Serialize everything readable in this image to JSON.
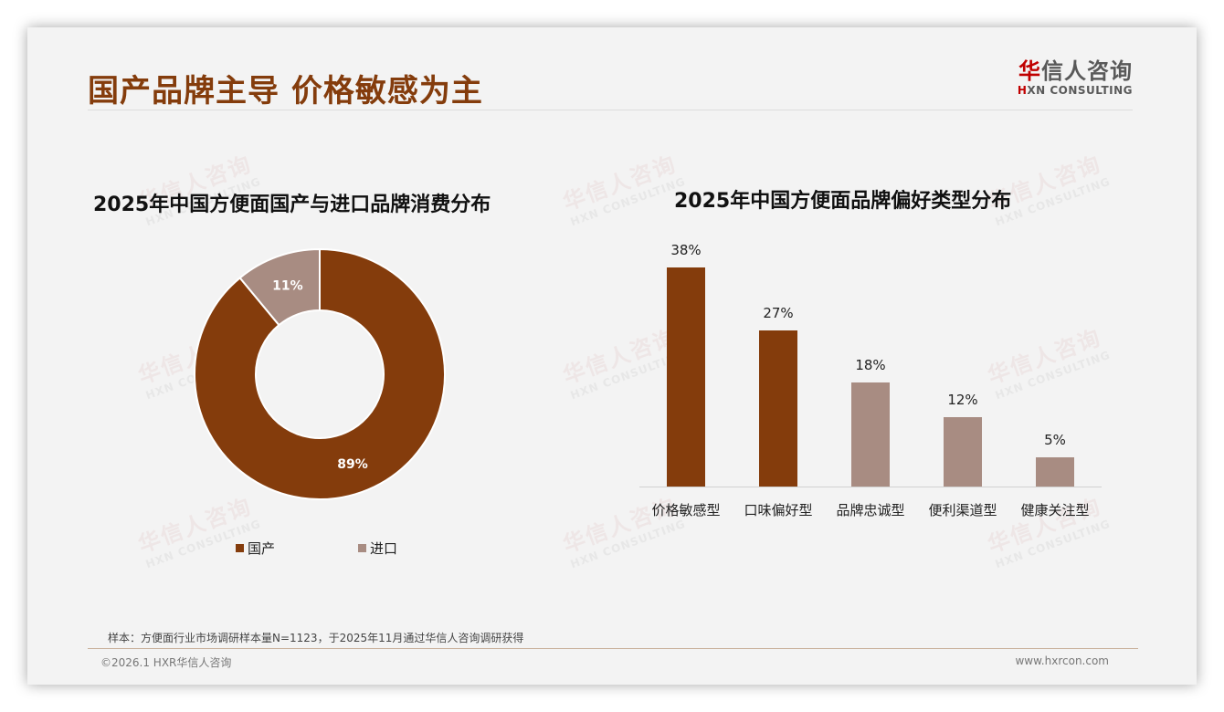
{
  "page": {
    "title": "国产品牌主导 价格敏感为主",
    "logo": {
      "cn_first": "华",
      "cn_rest": "信人咨询",
      "en_first": "H",
      "en_rest": "XN CONSULTING"
    },
    "note": "样本：方便面行业市场调研样本量N=1123，于2025年11月通过华信人咨询调研获得",
    "copyright": "©2026.1 HXR华信人咨询",
    "website": "www.hxrcon.com",
    "watermark": {
      "cn": "华信人咨询",
      "en": "HXN CONSULTING"
    }
  },
  "colors": {
    "primary": "#843c0c",
    "secondary": "#a88c82",
    "title": "#843c0c"
  },
  "chart_data": [
    {
      "type": "pie",
      "variant": "donut",
      "title": "2025年中国方便面国产与进口品牌消费分布",
      "categories": [
        "国产",
        "进口"
      ],
      "values": [
        89,
        11
      ],
      "labels": [
        "89%",
        "11%"
      ],
      "colors": [
        "#843c0c",
        "#a88c82"
      ],
      "legend_position": "bottom"
    },
    {
      "type": "bar",
      "title": "2025年中国方便面品牌偏好类型分布",
      "categories": [
        "价格敏感型",
        "口味偏好型",
        "品牌忠诚型",
        "便利渠道型",
        "健康关注型"
      ],
      "values": [
        38,
        27,
        18,
        12,
        5
      ],
      "labels": [
        "38%",
        "27%",
        "18%",
        "12%",
        "5%"
      ],
      "colors": [
        "#843c0c",
        "#843c0c",
        "#a88c82",
        "#a88c82",
        "#a88c82"
      ],
      "xlabel": "",
      "ylabel": "",
      "grid": false,
      "ylim": [
        0,
        40
      ]
    }
  ]
}
